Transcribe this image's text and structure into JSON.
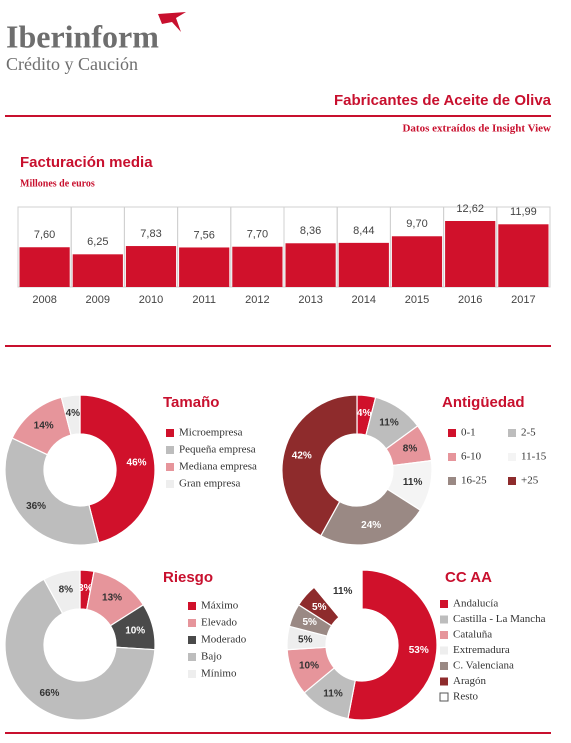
{
  "header": {
    "brand": "Iberinform",
    "tagline": "Crédito y Caución",
    "title": "Fabricantes de Aceite de Oliva",
    "source": "Datos extraídos de Insight View"
  },
  "chart_data": [
    {
      "type": "bar",
      "title": "Facturación media",
      "subtitle": "Millones de euros",
      "categories": [
        "2008",
        "2009",
        "2010",
        "2011",
        "2012",
        "2013",
        "2014",
        "2015",
        "2016",
        "2017"
      ],
      "values": [
        7.6,
        6.25,
        7.83,
        7.56,
        7.7,
        8.36,
        8.44,
        9.7,
        12.62,
        11.99
      ],
      "value_labels": [
        "7,60",
        "6,25",
        "7,83",
        "7,56",
        "7,70",
        "8,36",
        "8,44",
        "9,70",
        "12,62",
        "11,99"
      ],
      "color": "#d0112b"
    },
    {
      "type": "pie",
      "title": "Tamaño",
      "categories": [
        "Microempresa",
        "Pequeña empresa",
        "Mediana empresa",
        "Gran empresa"
      ],
      "values": [
        46,
        36,
        14,
        4
      ],
      "value_labels": [
        "46%",
        "36%",
        "14%",
        "4%"
      ],
      "colors": [
        "#d0112b",
        "#bdbdbd",
        "#e6959b",
        "#eeeeee"
      ]
    },
    {
      "type": "pie",
      "title": "Antigüedad",
      "categories": [
        "0-1",
        "2-5",
        "6-10",
        "11-15",
        "16-25",
        "+25"
      ],
      "values": [
        4,
        11,
        8,
        11,
        24,
        42
      ],
      "value_labels": [
        "4%",
        "11%",
        "8%",
        "11%",
        "24%",
        "42%"
      ],
      "colors": [
        "#d0112b",
        "#bdbdbd",
        "#e6959b",
        "#f4f4f4",
        "#9a8984",
        "#8e2b2c"
      ]
    },
    {
      "type": "pie",
      "title": "Riesgo",
      "categories": [
        "Máximo",
        "Elevado",
        "Moderado",
        "Bajo",
        "Mínimo"
      ],
      "values": [
        3,
        13,
        10,
        66,
        8
      ],
      "value_labels": [
        "3%",
        "13%",
        "10%",
        "66%",
        "8%"
      ],
      "colors": [
        "#d0112b",
        "#e6959b",
        "#4a4a4a",
        "#bdbdbd",
        "#eeeeee"
      ]
    },
    {
      "type": "pie",
      "title": "CC AA",
      "categories": [
        "Andalucía",
        "Castilla - La Mancha",
        "Cataluña",
        "Extremadura",
        "C. Valenciana",
        "Aragón",
        "Resto"
      ],
      "values": [
        53,
        11,
        10,
        5,
        5,
        5,
        11
      ],
      "value_labels": [
        "53%",
        "11%",
        "10%",
        "5%",
        "5%",
        "5%",
        "11%"
      ],
      "colors": [
        "#d0112b",
        "#bdbdbd",
        "#e6959b",
        "#eeeeee",
        "#9a8984",
        "#8e2b2c",
        "#ffffff"
      ]
    }
  ]
}
